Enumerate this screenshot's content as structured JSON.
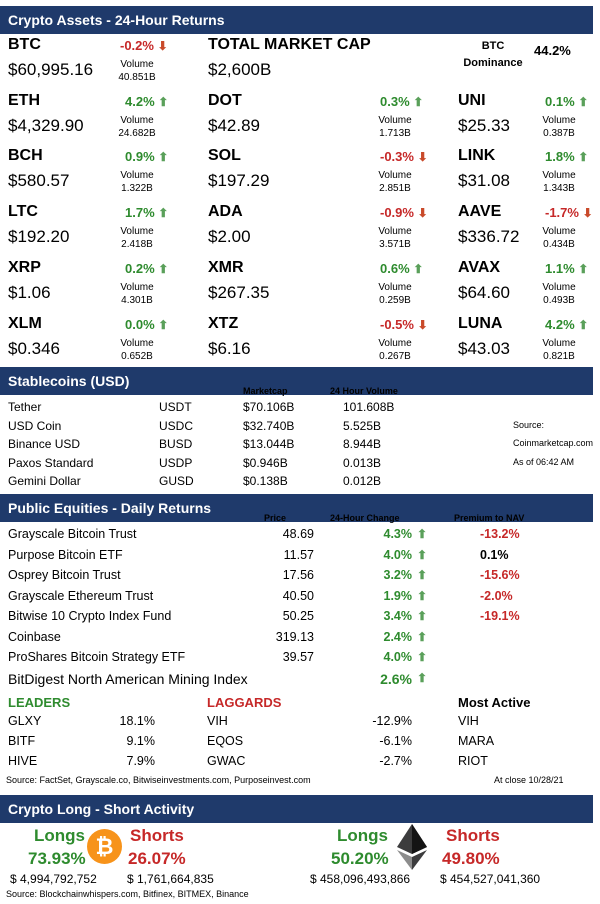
{
  "crypto": {
    "header": "Crypto Assets - 24-Hour Returns",
    "btc": {
      "ticker": "BTC",
      "pct": "-0.2%",
      "price": "$60,995.16",
      "vol_label": "Volume",
      "vol": "40.851B",
      "dir": "down"
    },
    "tmc": {
      "label": "TOTAL MARKET CAP",
      "value": "$2,600B"
    },
    "dom": {
      "label1": "BTC",
      "label2": "Dominance",
      "value": "44.2%"
    },
    "left": [
      {
        "ticker": "ETH",
        "pct": "4.2%",
        "price": "$4,329.90",
        "vol": "24.682B",
        "dir": "up"
      },
      {
        "ticker": "BCH",
        "pct": "0.9%",
        "price": "$580.57",
        "vol": "1.322B",
        "dir": "up"
      },
      {
        "ticker": "LTC",
        "pct": "1.7%",
        "price": "$192.20",
        "vol": "2.418B",
        "dir": "up"
      },
      {
        "ticker": "XRP",
        "pct": "0.2%",
        "price": "$1.06",
        "vol": "4.301B",
        "dir": "up"
      },
      {
        "ticker": "XLM",
        "pct": "0.0%",
        "price": "$0.346",
        "vol": "0.652B",
        "dir": "up"
      }
    ],
    "mid": [
      {
        "ticker": "DOT",
        "pct": "0.3%",
        "price": "$42.89",
        "vol": "1.713B",
        "dir": "up"
      },
      {
        "ticker": "SOL",
        "pct": "-0.3%",
        "price": "$197.29",
        "vol": "2.851B",
        "dir": "down"
      },
      {
        "ticker": "ADA",
        "pct": "-0.9%",
        "price": "$2.00",
        "vol": "3.571B",
        "dir": "down"
      },
      {
        "ticker": "XMR",
        "pct": "0.6%",
        "price": "$267.35",
        "vol": "0.259B",
        "dir": "up"
      },
      {
        "ticker": "XTZ",
        "pct": "-0.5%",
        "price": "$6.16",
        "vol": "0.267B",
        "dir": "down"
      }
    ],
    "right": [
      {
        "ticker": "UNI",
        "pct": "0.1%",
        "price": "$25.33",
        "vol": "0.387B",
        "dir": "up"
      },
      {
        "ticker": "LINK",
        "pct": "1.8%",
        "price": "$31.08",
        "vol": "1.343B",
        "dir": "up"
      },
      {
        "ticker": "AAVE",
        "pct": "-1.7%",
        "price": "$336.72",
        "vol": "0.434B",
        "dir": "down"
      },
      {
        "ticker": "AVAX",
        "pct": "1.1%",
        "price": "$64.60",
        "vol": "0.493B",
        "dir": "up"
      },
      {
        "ticker": "LUNA",
        "pct": "4.2%",
        "price": "$43.03",
        "vol": "0.821B",
        "dir": "up"
      }
    ],
    "vol_label": "Volume",
    "colors": {
      "pos": "#2e8b2e",
      "neg": "#c62828",
      "header": "#1f3a6b"
    }
  },
  "stable": {
    "header": "Stablecoins (USD)",
    "col_mcap": "Marketcap",
    "col_vol": "24 Hour Volume",
    "rows": [
      {
        "name": "Tether",
        "sym": "USDT",
        "mcap": "$70.106B",
        "vol": "101.608B"
      },
      {
        "name": "USD Coin",
        "sym": "USDC",
        "mcap": "$32.740B",
        "vol": "5.525B"
      },
      {
        "name": "Binance USD",
        "sym": "BUSD",
        "mcap": "$13.044B",
        "vol": "8.944B"
      },
      {
        "name": "Paxos Standard",
        "sym": "USDP",
        "mcap": "$0.946B",
        "vol": "0.013B"
      },
      {
        "name": "Gemini Dollar",
        "sym": "GUSD",
        "mcap": "$0.138B",
        "vol": "0.012B"
      }
    ],
    "source_label": "Source:",
    "source": "Coinmarketcap.com",
    "asof": "As of 06:42 AM"
  },
  "equities": {
    "header": "Public Equities - Daily Returns",
    "col_price": "Price",
    "col_change": "24-Hour Change",
    "col_nav": "Premium to NAV",
    "rows": [
      {
        "name": "Grayscale Bitcoin Trust",
        "price": "48.69",
        "chg": "4.3%",
        "nav": "-13.2%",
        "navneg": true
      },
      {
        "name": "Purpose Bitcoin ETF",
        "price": "11.57",
        "chg": "4.0%",
        "nav": "0.1%",
        "navneg": false
      },
      {
        "name": "Osprey Bitcoin Trust",
        "price": "17.56",
        "chg": "3.2%",
        "nav": "-15.6%",
        "navneg": true
      },
      {
        "name": "Grayscale Ethereum Trust",
        "price": "40.50",
        "chg": "1.9%",
        "nav": "-2.0%",
        "navneg": true
      },
      {
        "name": "Bitwise 10 Crypto Index Fund",
        "price": "50.25",
        "chg": "3.4%",
        "nav": "-19.1%",
        "navneg": true
      },
      {
        "name": "Coinbase",
        "price": "319.13",
        "chg": "2.4%",
        "nav": "",
        "navneg": false
      },
      {
        "name": "ProShares Bitcoin Strategy ETF",
        "price": "39.57",
        "chg": "4.0%",
        "nav": "",
        "navneg": false
      },
      {
        "name": "BitDigest North American Mining Index",
        "price": "",
        "chg": "2.6%",
        "nav": "",
        "navneg": false
      }
    ],
    "leaders_label": "LEADERS",
    "laggards_label": "LAGGARDS",
    "active_label": "Most Active",
    "leaders": [
      {
        "sym": "GLXY",
        "pct": "18.1%"
      },
      {
        "sym": "BITF",
        "pct": "9.1%"
      },
      {
        "sym": "HIVE",
        "pct": "7.9%"
      }
    ],
    "laggards": [
      {
        "sym": "VIH",
        "pct": "-12.9%"
      },
      {
        "sym": "EQOS",
        "pct": "-6.1%"
      },
      {
        "sym": "GWAC",
        "pct": "-2.7%"
      }
    ],
    "active": [
      "VIH",
      "MARA",
      "RIOT"
    ],
    "source": "Source: FactSet, Grayscale.co, Bitwiseinvestments.com, Purposeinvest.com",
    "atclose": "At close  10/28/21"
  },
  "longshort": {
    "header": "Crypto Long - Short Activity",
    "btc": {
      "longs_label": "Longs",
      "longs_pct": "73.93%",
      "shorts_label": "Shorts",
      "shorts_pct": "26.07%",
      "longs_amt": "$  4,994,792,752",
      "shorts_amt": "$  1,761,664,835"
    },
    "eth": {
      "longs_label": "Longs",
      "longs_pct": "50.20%",
      "shorts_label": "Shorts",
      "shorts_pct": "49.80%",
      "longs_amt": "$  458,096,493,866",
      "shorts_amt": "$  454,527,041,360"
    },
    "source": "Source: Blockchainwhispers.com, Bitfinex, BITMEX, Binance",
    "btc_icon": "bitcoin-icon",
    "eth_icon": "ethereum-icon"
  }
}
